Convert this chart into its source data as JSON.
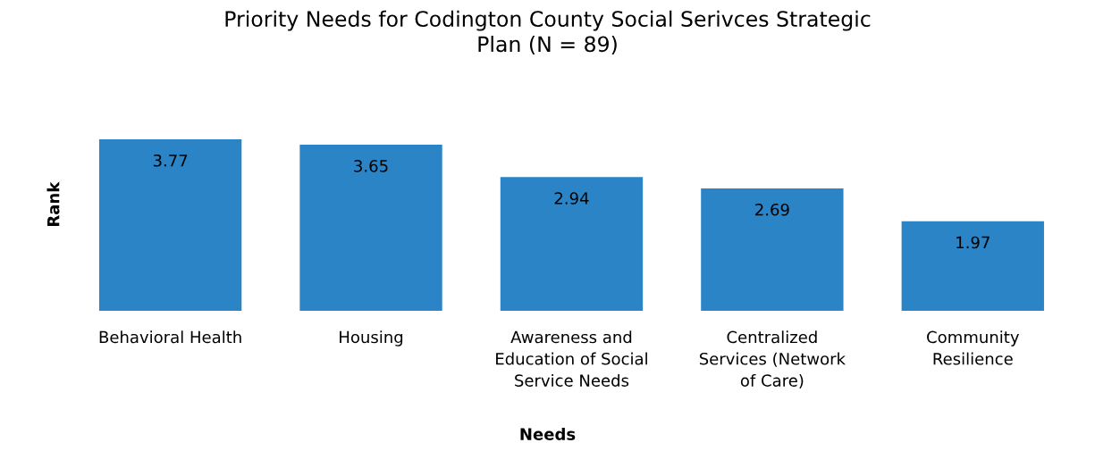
{
  "chart_data": {
    "type": "bar",
    "title": "Priority Needs for Codington County Social Serivces Strategic Plan (N = 89)",
    "xlabel": "Needs",
    "ylabel": "Rank",
    "categories": [
      "Behavioral Health",
      "Housing",
      "Awareness and Education of Social Service Needs",
      "Centralized Services (Network of Care)",
      "Community Resilience"
    ],
    "values": [
      3.77,
      3.65,
      2.94,
      2.69,
      1.97
    ],
    "color": "#2a84c6",
    "data_labels": true,
    "grid": false,
    "legend": false
  }
}
